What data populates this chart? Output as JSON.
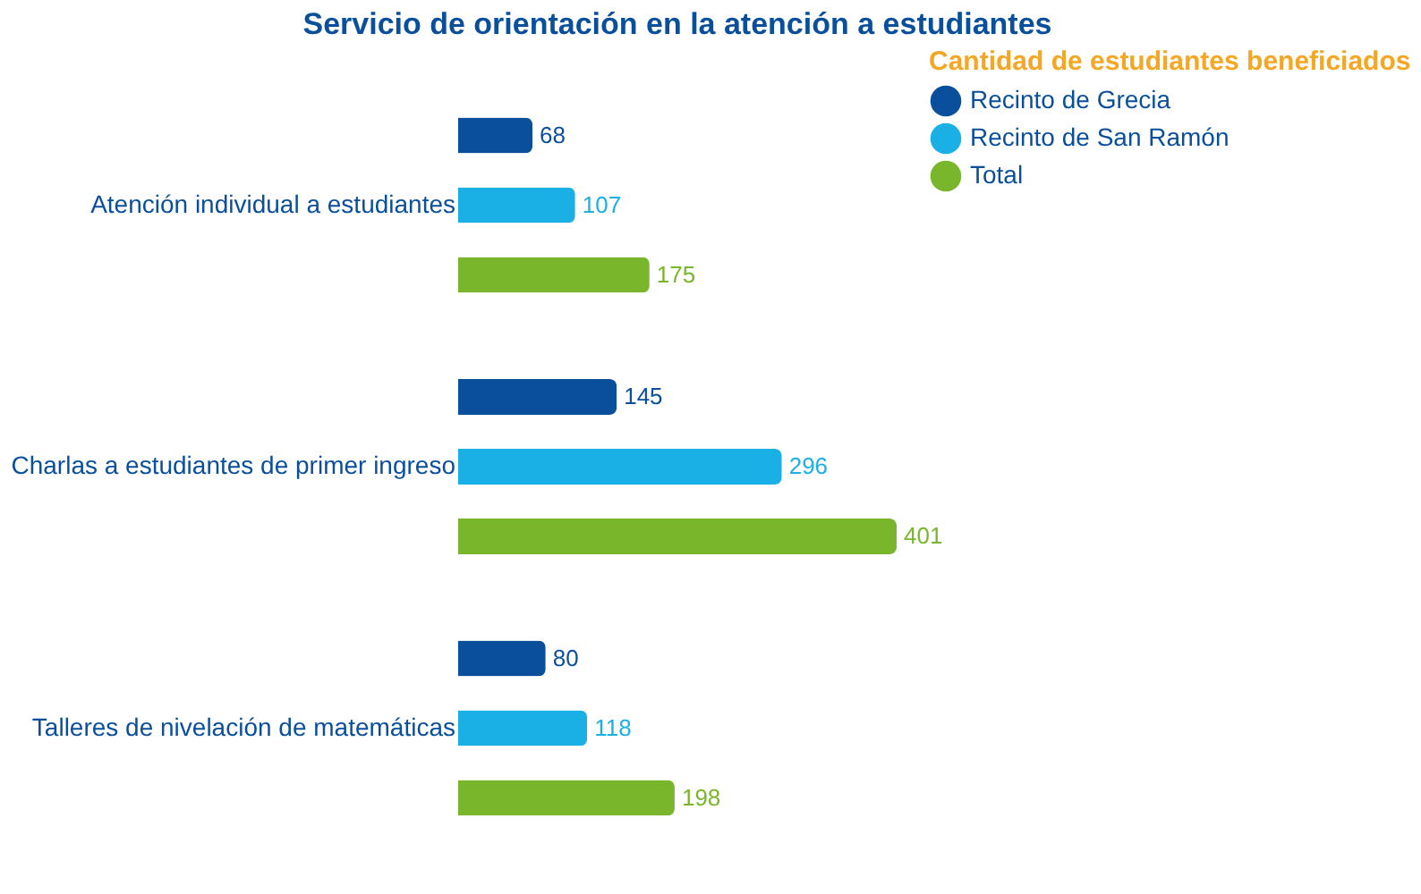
{
  "chart_data": {
    "type": "bar",
    "orientation": "horizontal",
    "title": "Servicio de orientación en la atención a estudiantes",
    "categories": [
      "Atención individual a estudiantes",
      "Charlas a estudiantes de primer ingreso",
      "Talleres de nivelación de matemáticas"
    ],
    "series": [
      {
        "name": "Recinto de Grecia",
        "color": "#0a4f9c",
        "values": [
          68,
          145,
          80
        ]
      },
      {
        "name": "Recinto de San Ramón",
        "color": "#1ab0e6",
        "values": [
          107,
          296,
          118
        ]
      },
      {
        "name": "Total",
        "color": "#7ab62c",
        "values": [
          175,
          401,
          198
        ]
      }
    ],
    "legend_title": "Cantidad de estudiantes beneficiados",
    "legend": "right",
    "data_labels": true,
    "tick_labels": "y",
    "grid": false
  }
}
